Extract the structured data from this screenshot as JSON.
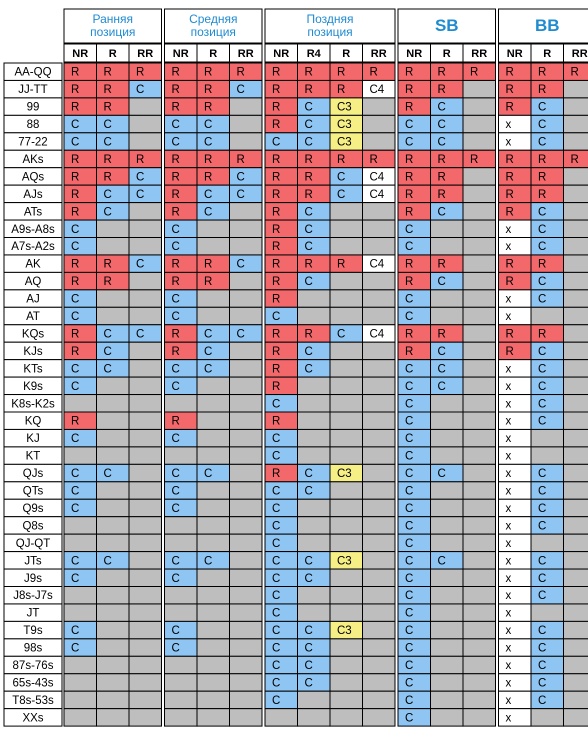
{
  "colors": {
    "R": "#f2686b",
    "C": "#8ec5f3",
    "C3": "#f6ef86",
    "C4": "#ffffff",
    "x": "#ffffff",
    "empty": "#bebebe",
    "grid": "#000000"
  },
  "groups": [
    {
      "line1": "Ранняя",
      "line2": "позиция",
      "big": false,
      "cols": [
        "NR",
        "R",
        "RR"
      ]
    },
    {
      "line1": "Средняя",
      "line2": "позиция",
      "big": false,
      "cols": [
        "NR",
        "R",
        "RR"
      ]
    },
    {
      "line1": "Поздняя",
      "line2": "позиция",
      "big": false,
      "cols": [
        "NR",
        "R4",
        "R",
        "RR"
      ]
    },
    {
      "line1": "SB",
      "line2": "",
      "big": true,
      "cols": [
        "NR",
        "R",
        "RR"
      ]
    },
    {
      "line1": "BB",
      "line2": "",
      "big": true,
      "cols": [
        "NR",
        "R",
        "RR"
      ]
    }
  ],
  "rows": [
    {
      "hand": "AA-QQ",
      "cells": [
        "R",
        "R",
        "R",
        "R",
        "R",
        "R",
        "R",
        "R",
        "R",
        "R",
        "R",
        "R",
        "R",
        "R",
        "R",
        "R"
      ]
    },
    {
      "hand": "JJ-TT",
      "cells": [
        "R",
        "R",
        "C",
        "R",
        "R",
        "C",
        "R",
        "R",
        "R",
        "C4",
        "R",
        "R",
        "",
        "R",
        "R",
        ""
      ]
    },
    {
      "hand": "99",
      "cells": [
        "R",
        "R",
        "",
        "R",
        "R",
        "",
        "R",
        "C",
        "C3",
        "",
        "R",
        "C",
        "",
        "R",
        "C",
        ""
      ]
    },
    {
      "hand": "88",
      "cells": [
        "C",
        "C",
        "",
        "C",
        "C",
        "",
        "R",
        "C",
        "C3",
        "",
        "C",
        "C",
        "",
        "x",
        "C",
        ""
      ]
    },
    {
      "hand": "77-22",
      "cells": [
        "C",
        "C",
        "",
        "C",
        "C",
        "",
        "C",
        "C",
        "C3",
        "",
        "C",
        "C",
        "",
        "x",
        "C",
        ""
      ]
    },
    {
      "hand": "AKs",
      "cells": [
        "R",
        "R",
        "R",
        "R",
        "R",
        "R",
        "R",
        "R",
        "R",
        "R",
        "R",
        "R",
        "R",
        "R",
        "R",
        "R"
      ]
    },
    {
      "hand": "AQs",
      "cells": [
        "R",
        "R",
        "C",
        "R",
        "R",
        "C",
        "R",
        "R",
        "C",
        "C4",
        "R",
        "R",
        "",
        "R",
        "R",
        ""
      ]
    },
    {
      "hand": "AJs",
      "cells": [
        "R",
        "C",
        "C",
        "R",
        "C",
        "C",
        "R",
        "R",
        "C",
        "C4",
        "R",
        "R",
        "",
        "R",
        "R",
        ""
      ]
    },
    {
      "hand": "ATs",
      "cells": [
        "R",
        "C",
        "",
        "R",
        "C",
        "",
        "R",
        "C",
        "",
        "",
        "R",
        "C",
        "",
        "R",
        "C",
        ""
      ]
    },
    {
      "hand": "A9s-A8s",
      "cells": [
        "C",
        "",
        "",
        "C",
        "",
        "",
        "R",
        "C",
        "",
        "",
        "C",
        "",
        "",
        "x",
        "C",
        ""
      ]
    },
    {
      "hand": "A7s-A2s",
      "cells": [
        "C",
        "",
        "",
        "C",
        "",
        "",
        "R",
        "C",
        "",
        "",
        "C",
        "",
        "",
        "x",
        "C",
        ""
      ]
    },
    {
      "hand": "AK",
      "cells": [
        "R",
        "R",
        "C",
        "R",
        "R",
        "C",
        "R",
        "R",
        "R",
        "C4",
        "R",
        "R",
        "",
        "R",
        "R",
        ""
      ]
    },
    {
      "hand": "AQ",
      "cells": [
        "R",
        "R",
        "",
        "R",
        "R",
        "",
        "R",
        "C",
        "",
        "",
        "R",
        "C",
        "",
        "R",
        "C",
        ""
      ]
    },
    {
      "hand": "AJ",
      "cells": [
        "C",
        "",
        "",
        "C",
        "",
        "",
        "R",
        "",
        "",
        "",
        "C",
        "",
        "",
        "x",
        "C",
        ""
      ]
    },
    {
      "hand": "AT",
      "cells": [
        "C",
        "",
        "",
        "C",
        "",
        "",
        "C",
        "",
        "",
        "",
        "C",
        "",
        "",
        "x",
        "",
        ""
      ]
    },
    {
      "hand": "KQs",
      "cells": [
        "R",
        "C",
        "C",
        "R",
        "C",
        "C",
        "R",
        "R",
        "C",
        "C4",
        "R",
        "R",
        "",
        "R",
        "R",
        ""
      ]
    },
    {
      "hand": "KJs",
      "cells": [
        "R",
        "C",
        "",
        "R",
        "C",
        "",
        "R",
        "C",
        "",
        "",
        "R",
        "C",
        "",
        "R",
        "C",
        ""
      ]
    },
    {
      "hand": "KTs",
      "cells": [
        "C",
        "C",
        "",
        "C",
        "C",
        "",
        "R",
        "C",
        "",
        "",
        "C",
        "C",
        "",
        "x",
        "C",
        ""
      ]
    },
    {
      "hand": "K9s",
      "cells": [
        "C",
        "",
        "",
        "C",
        "",
        "",
        "R",
        "",
        "",
        "",
        "C",
        "C",
        "",
        "x",
        "C",
        ""
      ]
    },
    {
      "hand": "K8s-K2s",
      "cells": [
        "",
        "",
        "",
        "",
        "",
        "",
        "C",
        "",
        "",
        "",
        "C",
        "",
        "",
        "x",
        "C",
        ""
      ]
    },
    {
      "hand": "KQ",
      "cells": [
        "R",
        "",
        "",
        "R",
        "",
        "",
        "R",
        "",
        "",
        "",
        "C",
        "",
        "",
        "x",
        "C",
        ""
      ]
    },
    {
      "hand": "KJ",
      "cells": [
        "C",
        "",
        "",
        "C",
        "",
        "",
        "C",
        "",
        "",
        "",
        "C",
        "",
        "",
        "x",
        "",
        ""
      ]
    },
    {
      "hand": "KT",
      "cells": [
        "",
        "",
        "",
        "",
        "",
        "",
        "C",
        "",
        "",
        "",
        "C",
        "",
        "",
        "x",
        "",
        ""
      ]
    },
    {
      "hand": "QJs",
      "cells": [
        "C",
        "C",
        "",
        "C",
        "C",
        "",
        "R",
        "C",
        "C3",
        "",
        "C",
        "C",
        "",
        "x",
        "C",
        ""
      ]
    },
    {
      "hand": "QTs",
      "cells": [
        "C",
        "",
        "",
        "C",
        "",
        "",
        "C",
        "C",
        "",
        "",
        "C",
        "",
        "",
        "x",
        "C",
        ""
      ]
    },
    {
      "hand": "Q9s",
      "cells": [
        "C",
        "",
        "",
        "C",
        "",
        "",
        "C",
        "",
        "",
        "",
        "C",
        "",
        "",
        "x",
        "C",
        ""
      ]
    },
    {
      "hand": "Q8s",
      "cells": [
        "",
        "",
        "",
        "",
        "",
        "",
        "C",
        "",
        "",
        "",
        "C",
        "",
        "",
        "x",
        "C",
        ""
      ]
    },
    {
      "hand": "QJ-QT",
      "cells": [
        "",
        "",
        "",
        "",
        "",
        "",
        "C",
        "",
        "",
        "",
        "C",
        "",
        "",
        "x",
        "",
        ""
      ]
    },
    {
      "hand": "JTs",
      "cells": [
        "C",
        "C",
        "",
        "C",
        "C",
        "",
        "C",
        "C",
        "C3",
        "",
        "C",
        "C",
        "",
        "x",
        "C",
        ""
      ]
    },
    {
      "hand": "J9s",
      "cells": [
        "C",
        "",
        "",
        "C",
        "",
        "",
        "C",
        "C",
        "",
        "",
        "C",
        "",
        "",
        "x",
        "C",
        ""
      ]
    },
    {
      "hand": "J8s-J7s",
      "cells": [
        "",
        "",
        "",
        "",
        "",
        "",
        "C",
        "",
        "",
        "",
        "C",
        "",
        "",
        "x",
        "C",
        ""
      ]
    },
    {
      "hand": "JT",
      "cells": [
        "",
        "",
        "",
        "",
        "",
        "",
        "C",
        "",
        "",
        "",
        "C",
        "",
        "",
        "x",
        "",
        ""
      ]
    },
    {
      "hand": "T9s",
      "cells": [
        "C",
        "",
        "",
        "C",
        "",
        "",
        "C",
        "C",
        "C3",
        "",
        "C",
        "",
        "",
        "x",
        "C",
        ""
      ]
    },
    {
      "hand": "98s",
      "cells": [
        "C",
        "",
        "",
        "C",
        "",
        "",
        "C",
        "C",
        "",
        "",
        "C",
        "",
        "",
        "x",
        "C",
        ""
      ]
    },
    {
      "hand": "87s-76s",
      "cells": [
        "",
        "",
        "",
        "",
        "",
        "",
        "C",
        "C",
        "",
        "",
        "C",
        "",
        "",
        "x",
        "C",
        ""
      ]
    },
    {
      "hand": "65s-43s",
      "cells": [
        "",
        "",
        "",
        "",
        "",
        "",
        "C",
        "C",
        "",
        "",
        "C",
        "",
        "",
        "x",
        "C",
        ""
      ]
    },
    {
      "hand": "T8s-53s",
      "cells": [
        "",
        "",
        "",
        "",
        "",
        "",
        "C",
        "",
        "",
        "",
        "C",
        "",
        "",
        "x",
        "C",
        ""
      ]
    },
    {
      "hand": "XXs",
      "cells": [
        "",
        "",
        "",
        "",
        "",
        "",
        "",
        "",
        "",
        "",
        "C",
        "",
        "",
        "x",
        "",
        ""
      ]
    }
  ]
}
